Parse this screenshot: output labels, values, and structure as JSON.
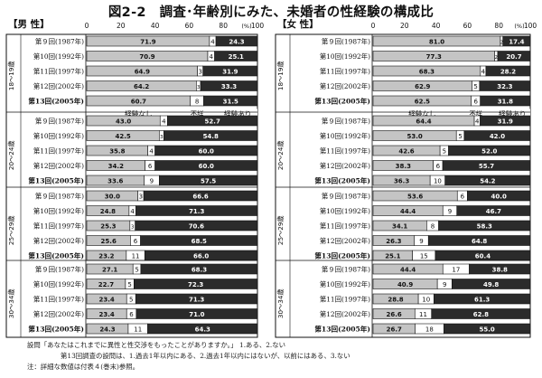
{
  "title": "図2-2　調査･年齢別にみた、未婚者の性経験の構成比",
  "colors": {
    "none": "#c4c4c4",
    "unknown": "#ffffff",
    "yes": "#2b2b2b",
    "border": "#111111",
    "sep": "#888888"
  },
  "chart_data": [
    {
      "type": "bar",
      "orientation": "horizontal",
      "stacked": true,
      "title": "【男 性】",
      "xlim": [
        0,
        100
      ],
      "xticks": [
        0,
        20,
        40,
        60,
        80,
        100
      ],
      "unit": "(%)",
      "series_labels": [
        "経験なし",
        "不詳",
        "経験あり"
      ],
      "groups": [
        {
          "label": "18～19歳",
          "rows": [
            {
              "survey": "第９回(1987年)",
              "none": 71.9,
              "unknown": 3.8,
              "yes": 24.3
            },
            {
              "survey": "第10回(1992年)",
              "none": 70.9,
              "unknown": 4.0,
              "yes": 25.1
            },
            {
              "survey": "第11回(1997年)",
              "none": 64.9,
              "unknown": 3.2,
              "yes": 31.9
            },
            {
              "survey": "第12回(2002年)",
              "none": 64.2,
              "unknown": 2.5,
              "yes": 33.3
            },
            {
              "survey": "第13回(2005年)",
              "none": 60.7,
              "unknown": 7.8,
              "yes": 31.5,
              "bold": true
            }
          ]
        },
        {
          "label": "20～24歳",
          "rows": [
            {
              "survey": "第９回(1987年)",
              "none": 43.0,
              "unknown": 4.3,
              "yes": 52.7
            },
            {
              "survey": "第10回(1992年)",
              "none": 42.5,
              "unknown": 2.7,
              "yes": 54.8
            },
            {
              "survey": "第11回(1997年)",
              "none": 35.8,
              "unknown": 4.2,
              "yes": 60.0
            },
            {
              "survey": "第12回(2002年)",
              "none": 34.2,
              "unknown": 5.8,
              "yes": 60.0
            },
            {
              "survey": "第13回(2005年)",
              "none": 33.6,
              "unknown": 8.9,
              "yes": 57.5,
              "bold": true
            }
          ]
        },
        {
          "label": "25～29歳",
          "rows": [
            {
              "survey": "第９回(1987年)",
              "none": 30.0,
              "unknown": 3.4,
              "yes": 66.6
            },
            {
              "survey": "第10回(1992年)",
              "none": 24.8,
              "unknown": 4.0,
              "yes": 71.3
            },
            {
              "survey": "第11回(1997年)",
              "none": 25.3,
              "unknown": 3.1,
              "yes": 70.6
            },
            {
              "survey": "第12回(2002年)",
              "none": 25.6,
              "unknown": 5.9,
              "yes": 68.5
            },
            {
              "survey": "第13回(2005年)",
              "none": 23.2,
              "unknown": 10.8,
              "yes": 66.0,
              "bold": true
            }
          ]
        },
        {
          "label": "30～34歳",
          "rows": [
            {
              "survey": "第９回(1987年)",
              "none": 27.1,
              "unknown": 4.6,
              "yes": 68.3
            },
            {
              "survey": "第10回(1992年)",
              "none": 22.7,
              "unknown": 5.0,
              "yes": 72.3
            },
            {
              "survey": "第11回(1997年)",
              "none": 23.4,
              "unknown": 5.3,
              "yes": 71.3
            },
            {
              "survey": "第12回(2002年)",
              "none": 23.4,
              "unknown": 5.6,
              "yes": 71.0
            },
            {
              "survey": "第13回(2005年)",
              "none": 24.3,
              "unknown": 11.4,
              "yes": 64.3,
              "bold": true
            }
          ]
        }
      ]
    },
    {
      "type": "bar",
      "orientation": "horizontal",
      "stacked": true,
      "title": "【女 性】",
      "xlim": [
        0,
        100
      ],
      "xticks": [
        0,
        20,
        40,
        60,
        80,
        100
      ],
      "unit": "(%)",
      "series_labels": [
        "経験なし",
        "不詳",
        "経験あり"
      ],
      "groups": [
        {
          "label": "18～19歳",
          "rows": [
            {
              "survey": "第９回(1987年)",
              "none": 81.0,
              "unknown": 1.6,
              "yes": 17.4
            },
            {
              "survey": "第10回(1992年)",
              "none": 77.3,
              "unknown": 2.0,
              "yes": 20.7
            },
            {
              "survey": "第11回(1997年)",
              "none": 68.3,
              "unknown": 3.5,
              "yes": 28.2
            },
            {
              "survey": "第12回(2002年)",
              "none": 62.9,
              "unknown": 4.8,
              "yes": 32.3
            },
            {
              "survey": "第13回(2005年)",
              "none": 62.5,
              "unknown": 5.7,
              "yes": 31.8,
              "bold": true
            }
          ]
        },
        {
          "label": "20～24歳",
          "rows": [
            {
              "survey": "第９回(1987年)",
              "none": 64.4,
              "unknown": 3.7,
              "yes": 31.9
            },
            {
              "survey": "第10回(1992年)",
              "none": 53.0,
              "unknown": 5.0,
              "yes": 42.0
            },
            {
              "survey": "第11回(1997年)",
              "none": 42.6,
              "unknown": 5.4,
              "yes": 52.0
            },
            {
              "survey": "第12回(2002年)",
              "none": 38.3,
              "unknown": 6.0,
              "yes": 55.7
            },
            {
              "survey": "第13回(2005年)",
              "none": 36.3,
              "unknown": 9.5,
              "yes": 54.2,
              "bold": true
            }
          ]
        },
        {
          "label": "25～29歳",
          "rows": [
            {
              "survey": "第９回(1987年)",
              "none": 53.6,
              "unknown": 6.4,
              "yes": 40.0
            },
            {
              "survey": "第10回(1992年)",
              "none": 44.4,
              "unknown": 8.9,
              "yes": 46.7
            },
            {
              "survey": "第11回(1997年)",
              "none": 34.1,
              "unknown": 7.6,
              "yes": 58.3
            },
            {
              "survey": "第12回(2002年)",
              "none": 26.3,
              "unknown": 8.9,
              "yes": 64.8
            },
            {
              "survey": "第13回(2005年)",
              "none": 25.1,
              "unknown": 14.5,
              "yes": 60.4,
              "bold": true
            }
          ]
        },
        {
          "label": "30～34歳",
          "rows": [
            {
              "survey": "第９回(1987年)",
              "none": 44.4,
              "unknown": 16.8,
              "yes": 38.8
            },
            {
              "survey": "第10回(1992年)",
              "none": 40.9,
              "unknown": 9.3,
              "yes": 49.8
            },
            {
              "survey": "第11回(1997年)",
              "none": 28.8,
              "unknown": 9.9,
              "yes": 61.3
            },
            {
              "survey": "第12回(2002年)",
              "none": 26.6,
              "unknown": 10.6,
              "yes": 62.8
            },
            {
              "survey": "第13回(2005年)",
              "none": 26.7,
              "unknown": 18.3,
              "yes": 55.0,
              "bold": true
            }
          ]
        }
      ]
    }
  ],
  "notes": {
    "line1": "設問「あなたはこれまでに異性と性交渉をもったことがありますか。」 1.ある、2.ない",
    "line2": "第13回調査の設問は、1.過去1年以内にある、2.過去1年以内にはないが、以前にはある、3.ない",
    "line3": "注：詳細な数値は付表４(巻末)参照。"
  }
}
